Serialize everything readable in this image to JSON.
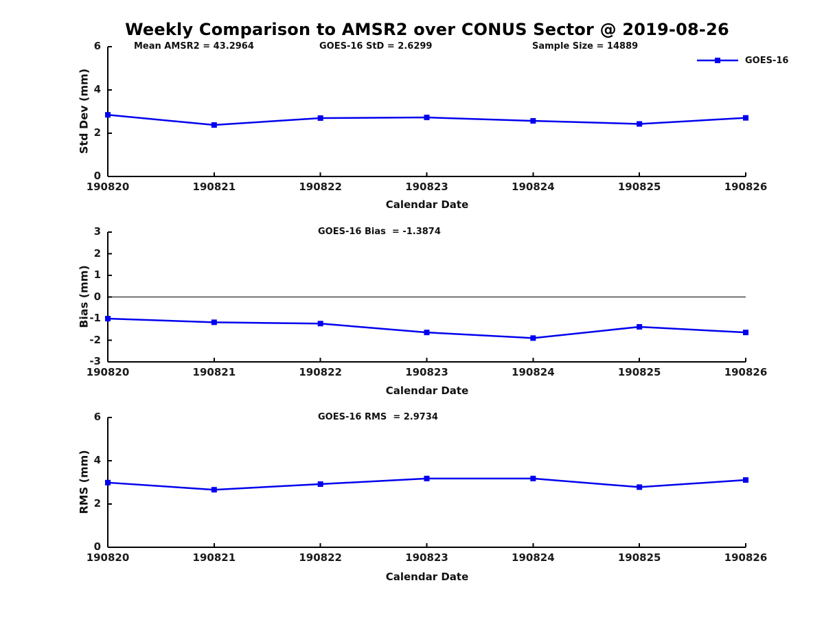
{
  "title": "Weekly Comparison to AMSR2 over CONUS Sector @ 2019-08-26",
  "legend": {
    "label": "GOES-16"
  },
  "annotations": {
    "mean_amsr2": "Mean AMSR2 = 43.2964",
    "goes16_std": "GOES-16 StD = 2.6299",
    "sample_size": "Sample Size = 14889",
    "goes16_bias": "GOES-16 Bias  = -1.3874",
    "goes16_rms": "GOES-16 RMS  = 2.9734"
  },
  "colors": {
    "line": "#0000EE",
    "axis": "#000000",
    "zero_line": "#000000"
  },
  "chart_data": [
    {
      "type": "line",
      "name": "std-dev-subplot",
      "ylabel": "Std Dev (mm)",
      "xlabel": "Calendar Date",
      "categories": [
        "190820",
        "190821",
        "190822",
        "190823",
        "190824",
        "190825",
        "190826"
      ],
      "series": [
        {
          "name": "GOES-16",
          "values": [
            2.85,
            2.38,
            2.7,
            2.73,
            2.57,
            2.43,
            2.71
          ]
        }
      ],
      "ylim": [
        0,
        6
      ],
      "yticks": [
        0,
        2,
        4,
        6
      ],
      "zero_line": false,
      "grid": false,
      "legend_position": "top-right"
    },
    {
      "type": "line",
      "name": "bias-subplot",
      "ylabel": "Bias (mm)",
      "xlabel": "Calendar Date",
      "categories": [
        "190820",
        "190821",
        "190822",
        "190823",
        "190824",
        "190825",
        "190826"
      ],
      "series": [
        {
          "name": "GOES-16",
          "values": [
            -1.0,
            -1.17,
            -1.23,
            -1.64,
            -1.9,
            -1.38,
            -1.64
          ]
        }
      ],
      "ylim": [
        -3,
        3
      ],
      "yticks": [
        -3,
        -2,
        -1,
        0,
        1,
        2,
        3
      ],
      "zero_line": true,
      "grid": false
    },
    {
      "type": "line",
      "name": "rms-subplot",
      "ylabel": "RMS (mm)",
      "xlabel": "Calendar Date",
      "categories": [
        "190820",
        "190821",
        "190822",
        "190823",
        "190824",
        "190825",
        "190826"
      ],
      "series": [
        {
          "name": "GOES-16",
          "values": [
            2.99,
            2.66,
            2.92,
            3.18,
            3.18,
            2.78,
            3.11
          ]
        }
      ],
      "ylim": [
        0,
        6
      ],
      "yticks": [
        0,
        2,
        4,
        6
      ],
      "zero_line": false,
      "grid": false
    }
  ]
}
